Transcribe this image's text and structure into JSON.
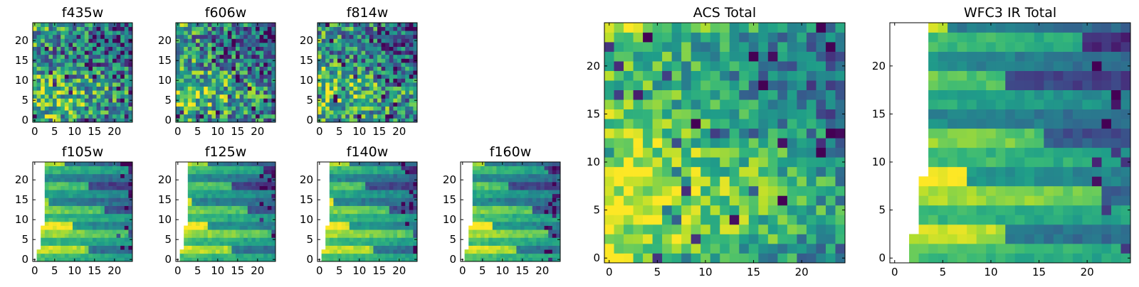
{
  "chart_data": [
    {
      "type": "heatmap",
      "title": "f435w",
      "colormap": "viridis",
      "grid_size": 25,
      "blank_left_columns": 0,
      "xticks": [
        0,
        5,
        10,
        15,
        20
      ],
      "yticks": [
        0,
        5,
        10,
        15,
        20
      ],
      "xlim": [
        0,
        25
      ],
      "ylim": [
        0,
        25
      ],
      "pattern": "noise"
    },
    {
      "type": "heatmap",
      "title": "f606w",
      "colormap": "viridis",
      "grid_size": 25,
      "blank_left_columns": 0,
      "xticks": [
        0,
        5,
        10,
        15,
        20
      ],
      "yticks": [
        0,
        5,
        10,
        15,
        20
      ],
      "xlim": [
        0,
        25
      ],
      "ylim": [
        0,
        25
      ],
      "pattern": "noise"
    },
    {
      "type": "heatmap",
      "title": "f814w",
      "colormap": "viridis",
      "grid_size": 25,
      "blank_left_columns": 0,
      "xticks": [
        0,
        5,
        10,
        15,
        20
      ],
      "yticks": [
        0,
        5,
        10,
        15,
        20
      ],
      "xlim": [
        0,
        25
      ],
      "ylim": [
        0,
        25
      ],
      "pattern": "noise"
    },
    {
      "type": "heatmap",
      "title": "f105w",
      "colormap": "viridis",
      "grid_size": 25,
      "blank_left_columns": 3,
      "xticks": [
        0,
        5,
        10,
        15,
        20
      ],
      "yticks": [
        0,
        5,
        10,
        15,
        20
      ],
      "xlim": [
        0,
        25
      ],
      "ylim": [
        0,
        25
      ],
      "pattern": "blocky"
    },
    {
      "type": "heatmap",
      "title": "f125w",
      "colormap": "viridis",
      "grid_size": 25,
      "blank_left_columns": 3,
      "xticks": [
        0,
        5,
        10,
        15,
        20
      ],
      "yticks": [
        0,
        5,
        10,
        15,
        20
      ],
      "xlim": [
        0,
        25
      ],
      "ylim": [
        0,
        25
      ],
      "pattern": "blocky"
    },
    {
      "type": "heatmap",
      "title": "f140w",
      "colormap": "viridis",
      "grid_size": 25,
      "blank_left_columns": 3,
      "xticks": [
        0,
        5,
        10,
        15,
        20
      ],
      "yticks": [
        0,
        5,
        10,
        15,
        20
      ],
      "xlim": [
        0,
        25
      ],
      "ylim": [
        0,
        25
      ],
      "pattern": "blocky"
    },
    {
      "type": "heatmap",
      "title": "f160w",
      "colormap": "viridis",
      "grid_size": 25,
      "blank_left_columns": 3,
      "xticks": [
        0,
        5,
        10,
        15,
        20
      ],
      "yticks": [
        0,
        5,
        10,
        15,
        20
      ],
      "xlim": [
        0,
        25
      ],
      "ylim": [
        0,
        25
      ],
      "pattern": "blocky"
    },
    {
      "type": "heatmap",
      "title": "ACS Total",
      "colormap": "viridis",
      "grid_size": 25,
      "blank_left_columns": 0,
      "xticks": [
        0,
        5,
        10,
        15,
        20
      ],
      "yticks": [
        0,
        5,
        10,
        15,
        20
      ],
      "xlim": [
        0,
        25
      ],
      "ylim": [
        0,
        25
      ],
      "pattern": "noise"
    },
    {
      "type": "heatmap",
      "title": "WFC3 IR Total",
      "colormap": "viridis",
      "grid_size": 25,
      "blank_left_columns": 4,
      "xticks": [
        0,
        5,
        10,
        15,
        20
      ],
      "yticks": [
        0,
        5,
        10,
        15,
        20
      ],
      "xlim": [
        0,
        25
      ],
      "ylim": [
        0,
        25
      ],
      "pattern": "blocky"
    }
  ]
}
